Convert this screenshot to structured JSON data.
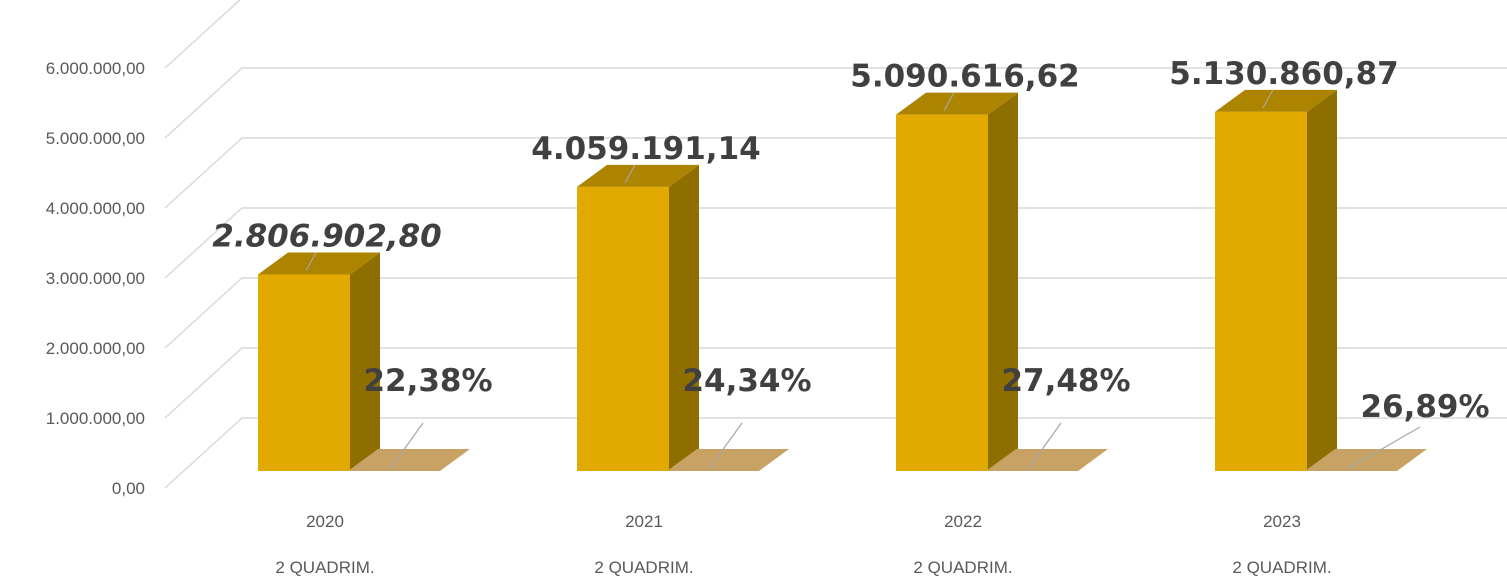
{
  "chart_data": {
    "type": "bar",
    "categories": [
      {
        "year": "2020",
        "period": "2 QUADRIM."
      },
      {
        "year": "2021",
        "period": "2 QUADRIM."
      },
      {
        "year": "2022",
        "period": "2 QUADRIM."
      },
      {
        "year": "2023",
        "period": "2 QUADRIM."
      }
    ],
    "series": [
      {
        "values": [
          2806902.8,
          4059191.14,
          5090616.62,
          5130860.87
        ],
        "labels": [
          "2.806.902,80",
          "4.059.191,14",
          "5.090.616,62",
          "5.130.860,87"
        ],
        "color": "#E2AA00"
      },
      {
        "values": [
          0.2238,
          0.2434,
          0.2748,
          0.2689
        ],
        "labels": [
          "22,38%",
          "24,34%",
          "27,48%",
          "26,89%"
        ],
        "color": "#C8A265"
      }
    ],
    "yticks": [
      "0,00",
      "1.000.000,00",
      "2.000.000,00",
      "3.000.000,00",
      "4.000.000,00",
      "5.000.000,00",
      "6.000.000,00"
    ],
    "ylim": [
      0,
      6000000
    ],
    "grid": true,
    "legend": "none",
    "title": "",
    "xlabel": "",
    "ylabel": ""
  }
}
